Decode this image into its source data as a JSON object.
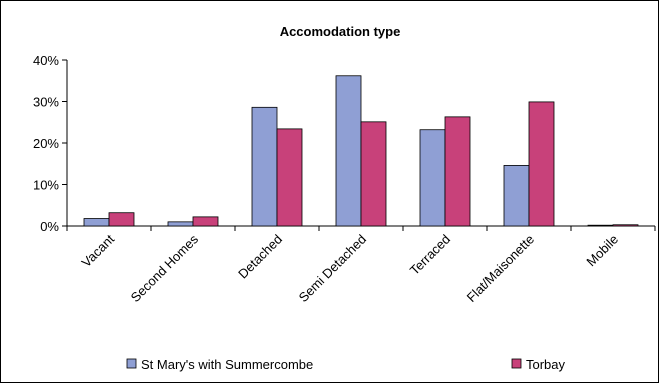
{
  "chart_data": {
    "type": "bar",
    "title": "Accomodation type",
    "categories": [
      "Vacant",
      "Second Homes",
      "Detached",
      "Semi Detached",
      "Terraced",
      "Flat/Maisonette",
      "Mobile"
    ],
    "series": [
      {
        "name": "St Mary's with Summercombe",
        "color": "#8f9fd4",
        "values": [
          1.8,
          1.0,
          28.6,
          36.2,
          23.2,
          14.6,
          0.1
        ]
      },
      {
        "name": "Torbay",
        "color": "#c8417a",
        "values": [
          3.2,
          2.2,
          23.4,
          25.1,
          26.3,
          29.9,
          0.3
        ]
      }
    ],
    "y_ticks": [
      "0%",
      "10%",
      "20%",
      "30%",
      "40%"
    ],
    "ylim": [
      0,
      40
    ],
    "y_unit": "%",
    "grid": false,
    "legend_position": "bottom"
  }
}
